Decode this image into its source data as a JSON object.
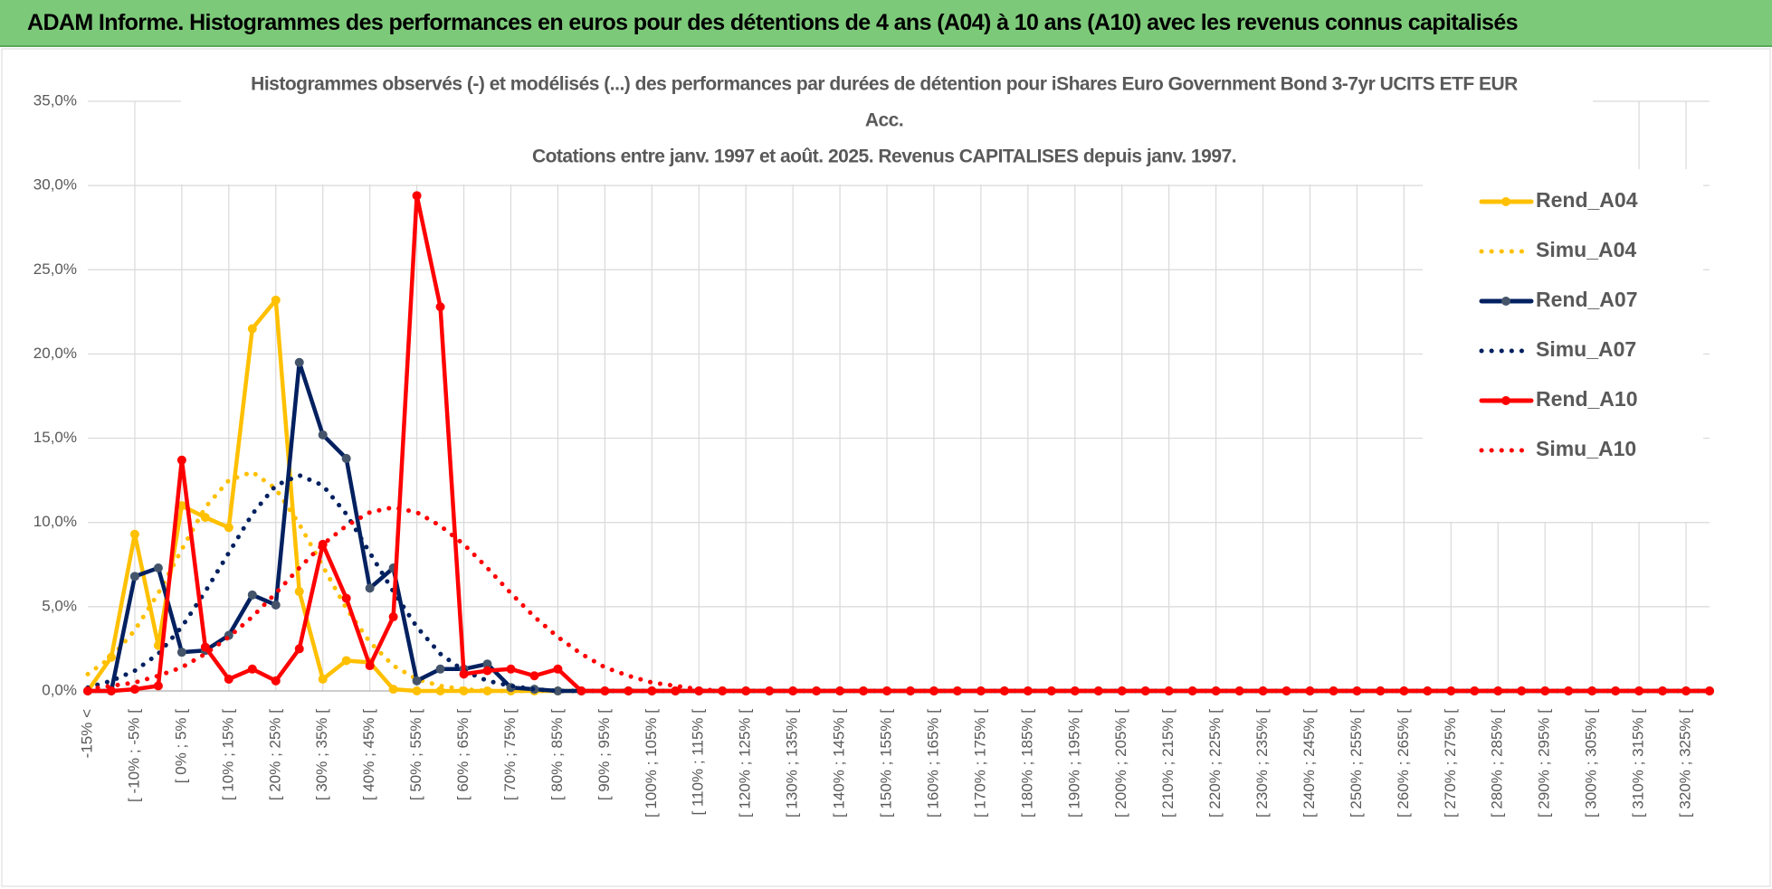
{
  "header": {
    "title": "ADAM Informe. Histogrammes des performances en euros pour des détentions de 4 ans (A04) à 10 ans (A10) avec les revenus connus capitalisés"
  },
  "chart_data": {
    "type": "line",
    "title_lines": [
      "Histogrammes observés (-) et modélisés (...) des performances par durées de détention pour iShares Euro Government Bond 3-7yr  UCITS ETF EUR",
      "Acc.",
      "Cotations entre janv. 1997 et août. 2025. Revenus CAPITALISES depuis janv. 1997."
    ],
    "categories": [
      "-15% <",
      null,
      "[ -10% ; -5% [",
      null,
      "[ 0% ; 5% [",
      null,
      "[ 10% ; 15% [",
      null,
      "[ 20% ; 25% [",
      null,
      "[ 30% ; 35% [",
      null,
      "[ 40% ; 45% [",
      null,
      "[ 50% ; 55% [",
      null,
      "[ 60% ; 65% [",
      null,
      "[ 70% ; 75% [",
      null,
      "[ 80% ; 85% [",
      null,
      "[ 90% ; 95% [",
      null,
      "[ 100% ; 105% [",
      null,
      "[ 110% ; 115% [",
      null,
      "[ 120% ; 125% [",
      null,
      "[ 130% ; 135% [",
      null,
      "[ 140% ; 145% [",
      null,
      "[ 150% ; 155% [",
      null,
      "[ 160% ; 165% [",
      null,
      "[ 170% ; 175% [",
      null,
      "[ 180% ; 185% [",
      null,
      "[ 190% ; 195% [",
      null,
      "[ 200% ; 205% [",
      null,
      "[ 210% ; 215% [",
      null,
      "[ 220% ; 225% [",
      null,
      "[ 230% ; 235% [",
      null,
      "[ 240% ; 245% [",
      null,
      "[ 250% ; 255% [",
      null,
      "[ 260% ; 265% [",
      null,
      "[ 270% ; 275% [",
      null,
      "[ 280% ; 285% [",
      null,
      "[ 290% ; 295% [",
      null,
      "[ 300% ; 305% [",
      null,
      "[ 310% ; 315% [",
      null,
      "[ 320% ; 325% [",
      null
    ],
    "series": [
      {
        "name": "Rend_A04",
        "color": "#ffc000",
        "style": "solid",
        "markers": true,
        "values": [
          0,
          2.0,
          9.3,
          2.7,
          11.0,
          10.3,
          9.7,
          21.5,
          23.2,
          5.9,
          0.7,
          1.8,
          1.7,
          0.1,
          0,
          0,
          0,
          0,
          0,
          0,
          0,
          0,
          0,
          0,
          0,
          0,
          0,
          0,
          0,
          0,
          0,
          0,
          0,
          0,
          0,
          0,
          0,
          0,
          0,
          0,
          0,
          0,
          0,
          0,
          0,
          0,
          0,
          0,
          0,
          0,
          0,
          0,
          0,
          0,
          0,
          0,
          0,
          0,
          0,
          0,
          0,
          0,
          0,
          0,
          0,
          0,
          0,
          0,
          0,
          0
        ]
      },
      {
        "name": "Simu_A04",
        "color": "#ffc000",
        "style": "dotted",
        "markers": false,
        "values": [
          1.0,
          2.0,
          3.6,
          5.8,
          8.4,
          10.9,
          12.5,
          13.0,
          12.0,
          9.9,
          7.4,
          4.9,
          2.9,
          1.5,
          0.7,
          0.3,
          0.1,
          0,
          0,
          0,
          0,
          0,
          0,
          0,
          0,
          0,
          0,
          0,
          0,
          0,
          0,
          0,
          0,
          0,
          0,
          0,
          0,
          0,
          0,
          0,
          0,
          0,
          0,
          0,
          0,
          0,
          0,
          0,
          0,
          0,
          0,
          0,
          0,
          0,
          0,
          0,
          0,
          0,
          0,
          0,
          0,
          0,
          0,
          0,
          0,
          0,
          0,
          0,
          0,
          0
        ]
      },
      {
        "name": "Rend_A07",
        "color": "#002060",
        "style": "solid",
        "markers": true,
        "values": [
          0,
          0,
          6.8,
          7.3,
          2.3,
          2.4,
          3.3,
          5.7,
          5.1,
          19.5,
          15.2,
          13.8,
          6.1,
          7.3,
          0.6,
          1.3,
          1.3,
          1.6,
          0.2,
          0.1,
          0,
          0,
          0,
          0,
          0,
          0,
          0,
          0,
          0,
          0,
          0,
          0,
          0,
          0,
          0,
          0,
          0,
          0,
          0,
          0,
          0,
          0,
          0,
          0,
          0,
          0,
          0,
          0,
          0,
          0,
          0,
          0,
          0,
          0,
          0,
          0,
          0,
          0,
          0,
          0,
          0,
          0,
          0,
          0,
          0,
          0,
          0,
          0,
          0,
          0
        ]
      },
      {
        "name": "Simu_A07",
        "color": "#002060",
        "style": "dotted",
        "markers": false,
        "values": [
          0.2,
          0.6,
          1.2,
          2.2,
          3.8,
          5.9,
          8.2,
          10.5,
          12.2,
          12.8,
          12.2,
          10.5,
          8.2,
          5.9,
          3.8,
          2.2,
          1.2,
          0.6,
          0.3,
          0.1,
          0,
          0,
          0,
          0,
          0,
          0,
          0,
          0,
          0,
          0,
          0,
          0,
          0,
          0,
          0,
          0,
          0,
          0,
          0,
          0,
          0,
          0,
          0,
          0,
          0,
          0,
          0,
          0,
          0,
          0,
          0,
          0,
          0,
          0,
          0,
          0,
          0,
          0,
          0,
          0,
          0,
          0,
          0,
          0,
          0,
          0,
          0,
          0,
          0,
          0
        ]
      },
      {
        "name": "Rend_A10",
        "color": "#ff0000",
        "style": "solid",
        "markers": true,
        "values": [
          0,
          0,
          0.1,
          0.3,
          13.7,
          2.6,
          0.7,
          1.3,
          0.6,
          2.5,
          8.7,
          5.5,
          1.5,
          4.4,
          29.4,
          22.8,
          1.0,
          1.2,
          1.3,
          0.9,
          1.3,
          0,
          0,
          0,
          0,
          0,
          0,
          0,
          0,
          0,
          0,
          0,
          0,
          0,
          0,
          0,
          0,
          0,
          0,
          0,
          0,
          0,
          0,
          0,
          0,
          0,
          0,
          0,
          0,
          0,
          0,
          0,
          0,
          0,
          0,
          0,
          0,
          0,
          0,
          0,
          0,
          0,
          0,
          0,
          0,
          0,
          0,
          0,
          0,
          0
        ]
      },
      {
        "name": "Simu_A10",
        "color": "#ff0000",
        "style": "dotted",
        "markers": false,
        "values": [
          0.1,
          0.3,
          0.5,
          0.9,
          1.4,
          2.2,
          3.2,
          4.4,
          5.8,
          7.3,
          8.7,
          9.8,
          10.6,
          10.9,
          10.6,
          9.8,
          8.7,
          7.3,
          5.8,
          4.4,
          3.2,
          2.2,
          1.4,
          0.9,
          0.5,
          0.3,
          0.1,
          0,
          0,
          0,
          0,
          0,
          0,
          0,
          0,
          0,
          0,
          0,
          0,
          0,
          0,
          0,
          0,
          0,
          0,
          0,
          0,
          0,
          0,
          0,
          0,
          0,
          0,
          0,
          0,
          0,
          0,
          0,
          0,
          0,
          0,
          0,
          0,
          0,
          0,
          0,
          0,
          0,
          0,
          0
        ]
      }
    ],
    "ylim": [
      0,
      35
    ],
    "yticks": [
      {
        "value": 0,
        "label": "0,0%"
      },
      {
        "value": 5,
        "label": "5,0%"
      },
      {
        "value": 10,
        "label": "10,0%"
      },
      {
        "value": 15,
        "label": "15,0%"
      },
      {
        "value": 20,
        "label": "20,0%"
      },
      {
        "value": 25,
        "label": "25,0%"
      },
      {
        "value": 30,
        "label": "30,0%"
      },
      {
        "value": 35,
        "label": "35,0%"
      }
    ],
    "grid": true,
    "legend": "right"
  }
}
